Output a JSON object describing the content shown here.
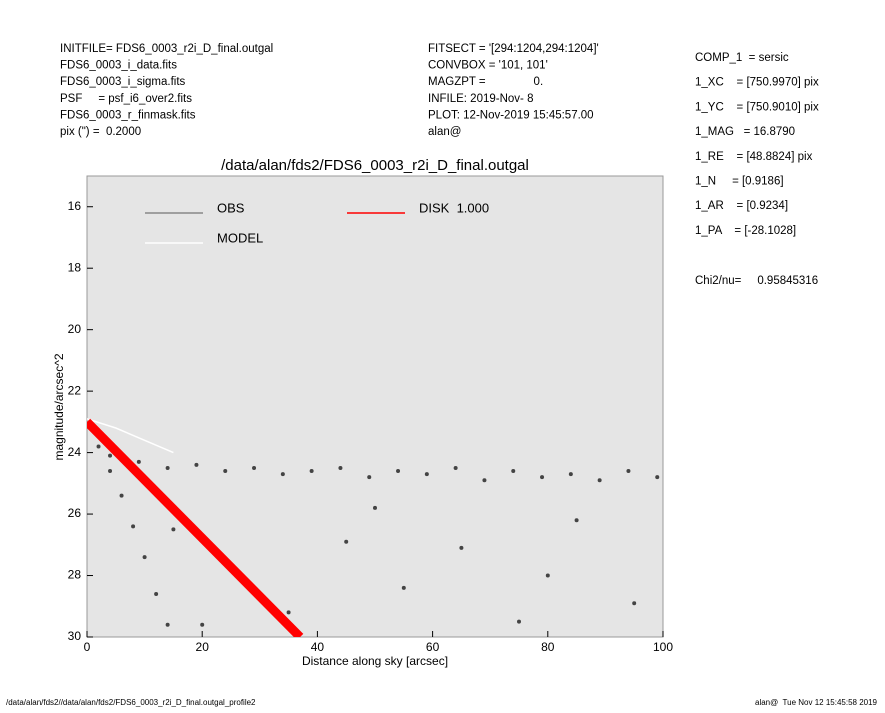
{
  "header": {
    "left": [
      "INITFILE= FDS6_0003_r2i_D_final.outgal",
      "FDS6_0003_i_data.fits",
      "FDS6_0003_i_sigma.fits",
      "PSF     = psf_i6_over2.fits",
      "FDS6_0003_r_finmask.fits",
      "pix (\") =  0.2000"
    ],
    "middle": [
      "FITSECT = '[294:1204,294:1204]'",
      "CONVBOX = '101, 101'",
      "MAGZPT =               0.",
      "INFILE: 2019-Nov- 8",
      "PLOT: 12-Nov-2019 15:45:57.00",
      "alan@"
    ],
    "right": [
      "COMP_1  = sersic",
      "1_XC    = [750.9970] pix",
      "1_YC    = [750.9010] pix",
      "1_MAG   = 16.8790",
      "1_RE    = [48.8824] pix",
      "1_N     = [0.9186]",
      "1_AR    = [0.9234]",
      "1_PA    = [-28.1028]"
    ],
    "chi2": "Chi2/nu=     0.95845316"
  },
  "footer": {
    "left": "/data/alan/fds2//data/alan/fds2/FDS6_0003_r2i_D_final.outgal_profile2",
    "right": "alan@  Tue Nov 12 15:45:58 2019"
  },
  "chart_data": {
    "type": "scatter",
    "title": "/data/alan/fds2/FDS6_0003_r2i_D_final.outgal",
    "x_label": "Distance along sky [arcsec]",
    "y_label": "magnitude/arcsec^2",
    "xlim": [
      0,
      100
    ],
    "xticks": [
      0,
      20,
      40,
      60,
      80,
      100
    ],
    "ylim": [
      15,
      30
    ],
    "yticks": [
      16,
      18,
      20,
      22,
      24,
      26,
      28,
      30
    ],
    "y_inverted": true,
    "series": [
      {
        "name": "OBS",
        "color": "#444444",
        "legend_color": "#888888",
        "style": "points",
        "x": [
          4,
          9,
          14,
          19,
          24,
          29,
          34,
          39,
          44,
          49,
          54,
          59,
          64,
          69,
          74,
          79,
          84,
          89,
          94,
          99,
          0.5,
          2,
          4,
          6,
          8,
          10,
          12,
          14,
          15,
          25,
          35,
          45,
          55,
          65,
          75,
          85,
          95,
          20,
          50,
          80
        ],
        "values": [
          24.1,
          24.3,
          24.5,
          24.4,
          24.6,
          24.5,
          24.7,
          24.6,
          24.5,
          24.8,
          24.6,
          24.7,
          24.5,
          24.9,
          24.6,
          24.8,
          24.7,
          24.9,
          24.6,
          24.8,
          23.2,
          23.8,
          24.6,
          25.4,
          26.4,
          27.4,
          28.6,
          29.6,
          26.5,
          27.8,
          29.2,
          26.9,
          28.4,
          27.1,
          29.5,
          26.2,
          28.9,
          29.6,
          25.8,
          28.0
        ]
      },
      {
        "name": "MODEL",
        "color": "#ffffff",
        "legend_color": "#ffffff",
        "style": "line",
        "x": [
          0,
          5,
          10,
          15
        ],
        "values": [
          22.9,
          23.2,
          23.6,
          24.0
        ]
      },
      {
        "name": "DISK  1.000",
        "color": "#ff0000",
        "legend_color": "#ff0000",
        "style": "band",
        "x": [
          0,
          37
        ],
        "values": [
          23.0,
          30.0
        ]
      }
    ]
  }
}
